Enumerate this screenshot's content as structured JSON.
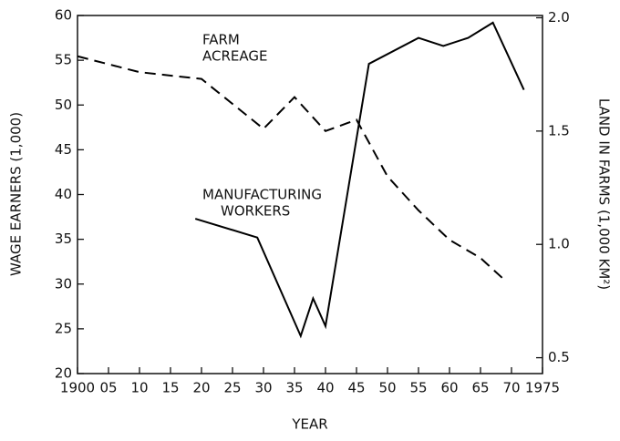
{
  "chart_data": {
    "type": "line",
    "xlabel": "YEAR",
    "ylabel": "WAGE EARNERS (1,000)",
    "y2label": "LAND IN FARMS (1,000 KM²)",
    "annotations": [
      [
        "FARM",
        "ACREAGE"
      ],
      [
        "MANUFACTURING",
        "WORKERS"
      ]
    ],
    "xlim": [
      1900,
      1975
    ],
    "xticks": [
      {
        "value": 1900,
        "label": "1900"
      },
      {
        "value": 1905,
        "label": "05"
      },
      {
        "value": 1910,
        "label": "10"
      },
      {
        "value": 1915,
        "label": "15"
      },
      {
        "value": 1920,
        "label": "20"
      },
      {
        "value": 1925,
        "label": "25"
      },
      {
        "value": 1930,
        "label": "30"
      },
      {
        "value": 1935,
        "label": "35"
      },
      {
        "value": 1940,
        "label": "40"
      },
      {
        "value": 1945,
        "label": "45"
      },
      {
        "value": 1950,
        "label": "50"
      },
      {
        "value": 1955,
        "label": "55"
      },
      {
        "value": 1960,
        "label": "60"
      },
      {
        "value": 1965,
        "label": "65"
      },
      {
        "value": 1970,
        "label": "70"
      },
      {
        "value": 1975,
        "label": "1975"
      }
    ],
    "ylim": [
      20,
      60
    ],
    "yticks": [
      20,
      25,
      30,
      35,
      40,
      45,
      50,
      55,
      60
    ],
    "y2lim": [
      0.43,
      2.01
    ],
    "y2ticks": [
      0.5,
      {
        "value": 1,
        "label": "1.0"
      },
      1.5,
      {
        "value": 2,
        "label": "2.0"
      }
    ],
    "series": [
      {
        "color": "#000000",
        "dash": false,
        "x": [
          1919,
          1929,
          1936,
          1938,
          1940,
          1947,
          1955,
          1959,
          1963,
          1967,
          1972
        ],
        "values": [
          37.3,
          35.2,
          24.2,
          28.4,
          25.3,
          54.6,
          57.5,
          56.6,
          57.5,
          59.2,
          51.7
        ]
      },
      {
        "color": "#000000",
        "dash": true,
        "axis": "y2",
        "x": [
          1900,
          1910,
          1920,
          1930,
          1935,
          1940,
          1945,
          1950,
          1955,
          1960,
          1965,
          1969
        ],
        "values": [
          1.83,
          1.76,
          1.73,
          1.51,
          1.65,
          1.5,
          1.55,
          1.3,
          1.15,
          1.02,
          0.94,
          0.84
        ]
      }
    ]
  }
}
